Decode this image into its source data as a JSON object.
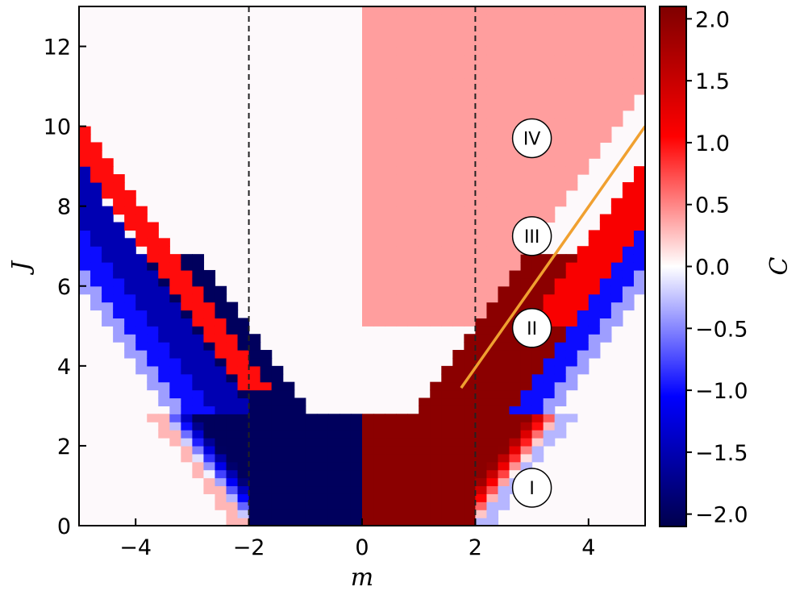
{
  "chart_data": {
    "type": "heatmap",
    "xlabel": "m",
    "ylabel": "J",
    "colorbar_label": "C",
    "xlim": [
      -5,
      5
    ],
    "ylim": [
      0,
      13
    ],
    "x_ticks": [
      -4,
      -2,
      0,
      2,
      4
    ],
    "x_tick_labels": [
      "−4",
      "−2",
      "0",
      "2",
      "4"
    ],
    "y_ticks": [
      0,
      2,
      4,
      6,
      8,
      10,
      12
    ],
    "y_tick_labels": [
      "0",
      "2",
      "4",
      "6",
      "8",
      "10",
      "12"
    ],
    "colorbar_range": [
      -2.1,
      2.1
    ],
    "colorbar_ticks": [
      2.0,
      1.5,
      1.0,
      0.5,
      0.0,
      -0.5,
      -1.0,
      -1.5,
      -2.0
    ],
    "colorbar_tick_labels": [
      "2.0",
      "1.5",
      "1.0",
      "0.5",
      "0.0",
      "−0.5",
      "−1.0",
      "−1.5",
      "−2.0"
    ],
    "colormap": "seismic",
    "vertical_dashed_lines_m": [
      -2,
      2
    ],
    "orange_line": {
      "color": "#f0a030",
      "from": [
        1.75,
        3.45
      ],
      "to": [
        5,
        10
      ]
    },
    "region_labels": [
      {
        "text": "IV",
        "m": 3.0,
        "J": 9.7
      },
      {
        "text": "III",
        "m": 3.0,
        "J": 7.25
      },
      {
        "text": "II",
        "m": 3.0,
        "J": 4.95
      },
      {
        "text": "I",
        "m": 3.0,
        "J": 0.95
      }
    ]
  }
}
